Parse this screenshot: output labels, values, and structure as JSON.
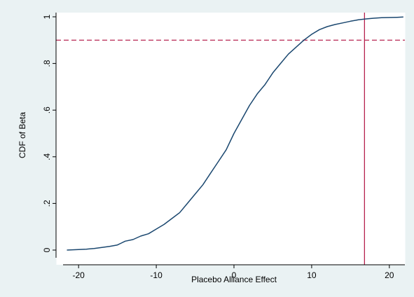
{
  "chart_data": {
    "type": "line",
    "title": "",
    "xlabel": "Placebo Alliance Effect",
    "ylabel": "CDF of Beta",
    "xlim": [
      -22,
      22
    ],
    "ylim": [
      0,
      1
    ],
    "x_ticks": [
      -20,
      -10,
      0,
      10,
      20
    ],
    "x_tick_labels": [
      "-20",
      "-10",
      "0",
      "10",
      "20"
    ],
    "y_ticks": [
      0,
      0.2,
      0.4,
      0.6,
      0.8,
      1
    ],
    "y_tick_labels": [
      "0",
      ".2",
      ".4",
      ".6",
      ".8",
      "1"
    ],
    "grid": false,
    "legend": "none",
    "series": [
      {
        "color": "#1a476f",
        "x": [
          -21.5,
          -20,
          -19,
          -18,
          -17,
          -16,
          -15,
          -14.5,
          -14,
          -13,
          -12,
          -11,
          -10,
          -9,
          -8,
          -7,
          -6,
          -5,
          -4,
          -3,
          -2,
          -1,
          0,
          1,
          2,
          3,
          4,
          5,
          6,
          7,
          8,
          9,
          10,
          11,
          12,
          13,
          14,
          15,
          16,
          17,
          18,
          19,
          20,
          21,
          21.8
        ],
        "values": [
          0.0,
          0.002,
          0.004,
          0.007,
          0.011,
          0.016,
          0.022,
          0.03,
          0.038,
          0.045,
          0.06,
          0.07,
          0.09,
          0.11,
          0.135,
          0.16,
          0.2,
          0.24,
          0.28,
          0.33,
          0.38,
          0.43,
          0.5,
          0.56,
          0.62,
          0.67,
          0.71,
          0.76,
          0.8,
          0.84,
          0.87,
          0.9,
          0.925,
          0.945,
          0.958,
          0.967,
          0.974,
          0.981,
          0.987,
          0.991,
          0.994,
          0.996,
          0.997,
          0.998,
          0.999
        ]
      }
    ],
    "reference_lines": [
      {
        "orientation": "horizontal",
        "value": 0.9,
        "style": "dashed",
        "color": "#b01040"
      },
      {
        "orientation": "vertical",
        "value": 16.8,
        "style": "solid",
        "color": "#b01040"
      }
    ]
  }
}
